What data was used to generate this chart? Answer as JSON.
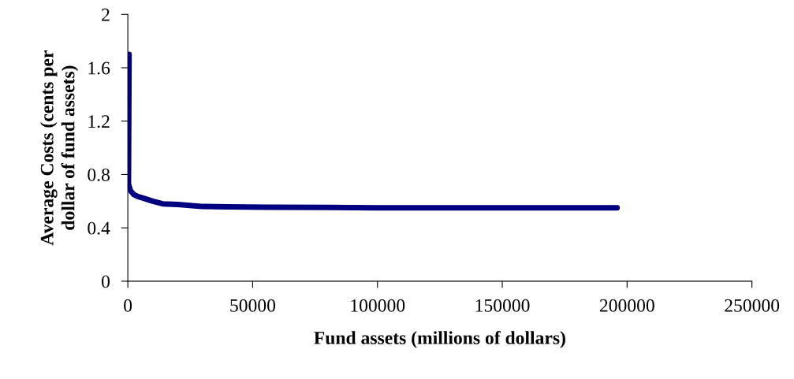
{
  "chart_data": {
    "type": "line",
    "xlabel": "Fund assets (millions of dollars)",
    "ylabel": "Average Costs (cents per dollar of fund assets)",
    "series": [
      {
        "color": "#000080",
        "x": [
          500,
          300,
          250,
          1000,
          2400,
          4000,
          6600,
          10000,
          14000,
          20000,
          29800,
          40000,
          56000,
          80000,
          100000,
          150000,
          196000
        ],
        "values": [
          1.7,
          0.9,
          0.73,
          0.68,
          0.65,
          0.635,
          0.62,
          0.6,
          0.58,
          0.575,
          0.56,
          0.558,
          0.555,
          0.553,
          0.55,
          0.55,
          0.55
        ]
      }
    ],
    "xlim": [
      0,
      250000
    ],
    "xticks": [
      0,
      50000,
      100000,
      150000,
      200000,
      250000
    ],
    "ylim": [
      0,
      2
    ],
    "yticks": [
      0,
      0.4,
      0.8,
      1.2,
      1.6,
      2
    ],
    "grid": false,
    "legend": false
  }
}
